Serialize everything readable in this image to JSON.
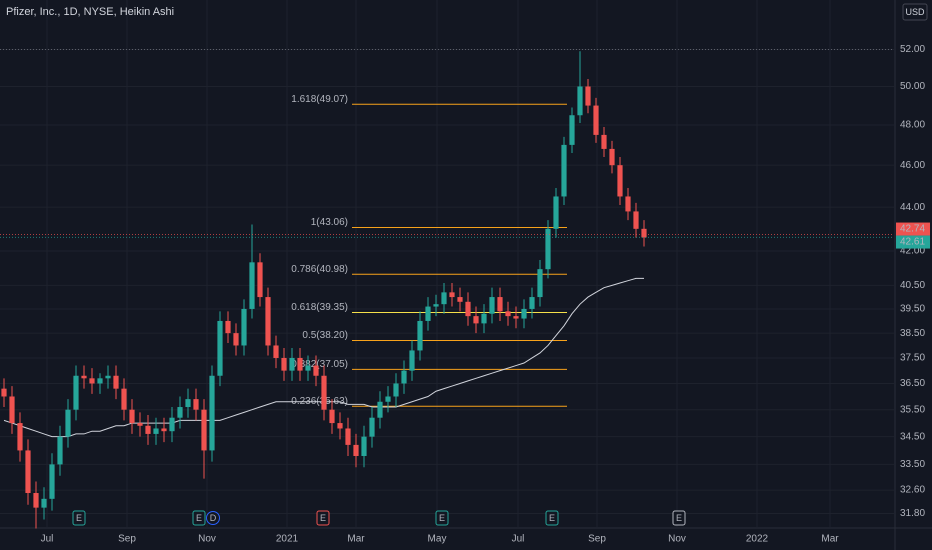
{
  "chart_data": {
    "type": "candlestick",
    "title": "Pfizer, Inc., 1D, NYSE, Heikin Ashi",
    "currency": "USD",
    "log_scale": true,
    "grid": true,
    "up_color": "#26a69a",
    "down_color": "#ef5350",
    "xlim": [
      -0.5,
      110.75
    ],
    "xticks": [
      {
        "value": 5.375,
        "label": "Jul"
      },
      {
        "value": 15.375,
        "label": "Sep"
      },
      {
        "value": 25.375,
        "label": "Nov"
      },
      {
        "value": 35.375,
        "label": "2021"
      },
      {
        "value": 44,
        "label": "Mar"
      },
      {
        "value": 54.125,
        "label": "May"
      },
      {
        "value": 64.25,
        "label": "Jul"
      },
      {
        "value": 74.125,
        "label": "Sep"
      },
      {
        "value": 84.125,
        "label": "Nov"
      },
      {
        "value": 94.125,
        "label": "2022"
      },
      {
        "value": 103.25,
        "label": "Mar"
      }
    ],
    "ylim": [
      31.35,
      54.8
    ],
    "yticks": [
      {
        "value": 31.8,
        "label": "31.80"
      },
      {
        "value": 32.6,
        "label": "32.60"
      },
      {
        "value": 33.5,
        "label": "33.50"
      },
      {
        "value": 34.5,
        "label": "34.50"
      },
      {
        "value": 35.5,
        "label": "35.50"
      },
      {
        "value": 36.5,
        "label": "36.50"
      },
      {
        "value": 37.5,
        "label": "37.50"
      },
      {
        "value": 38.5,
        "label": "38.50"
      },
      {
        "value": 39.5,
        "label": "39.50"
      },
      {
        "value": 40.5,
        "label": "40.50"
      },
      {
        "value": 42,
        "label": "42.00"
      },
      {
        "value": 44,
        "label": "44.00"
      },
      {
        "value": 46,
        "label": "46.00"
      },
      {
        "value": 48,
        "label": "48.00"
      },
      {
        "value": 50,
        "label": "50.00"
      },
      {
        "value": 52,
        "label": "52.00"
      }
    ],
    "open": [
      36.3,
      36.0,
      35.0,
      34.0,
      32.5,
      32.0,
      32.3,
      33.5,
      34.5,
      35.5,
      36.8,
      36.7,
      36.5,
      36.7,
      36.8,
      36.3,
      35.5,
      35.0,
      34.9,
      34.6,
      34.8,
      34.7,
      35.2,
      35.6,
      35.9,
      35.5,
      34.0,
      36.8,
      39.0,
      38.5,
      38.0,
      39.5,
      41.5,
      40.0,
      38.0,
      37.5,
      37.0,
      37.5,
      37.0,
      37.2,
      36.8,
      35.5,
      35.0,
      34.8,
      34.2,
      33.8,
      34.5,
      35.2,
      35.8,
      36.0,
      36.5,
      37.0,
      37.8,
      39.0,
      39.6,
      39.7,
      40.2,
      40.0,
      39.8,
      39.2,
      38.9,
      39.3,
      40.0,
      39.4,
      39.2,
      39.1,
      39.5,
      40.0,
      41.2,
      43.0,
      44.5,
      47.0,
      48.5,
      50.0,
      49.0,
      47.5,
      46.8,
      46.0,
      44.5,
      43.8,
      43.0
    ],
    "high": [
      36.7,
      36.4,
      35.4,
      34.4,
      32.9,
      32.7,
      33.9,
      34.9,
      35.9,
      37.2,
      37.2,
      37.1,
      36.9,
      37.2,
      37.2,
      36.7,
      35.9,
      35.4,
      35.3,
      35.2,
      35.2,
      35.6,
      36.0,
      36.3,
      36.3,
      35.9,
      37.2,
      39.4,
      39.4,
      38.9,
      39.9,
      43.2,
      41.9,
      40.4,
      38.4,
      37.9,
      37.9,
      37.9,
      37.6,
      37.6,
      37.2,
      35.9,
      35.4,
      35.2,
      34.6,
      34.9,
      35.6,
      36.2,
      36.4,
      36.9,
      37.4,
      38.2,
      39.4,
      40.0,
      40.1,
      40.6,
      40.6,
      40.4,
      40.2,
      39.6,
      39.7,
      40.4,
      40.4,
      39.8,
      39.6,
      39.9,
      40.4,
      41.6,
      43.4,
      44.9,
      47.4,
      48.9,
      51.9,
      50.4,
      49.4,
      47.9,
      47.2,
      46.4,
      44.9,
      44.2,
      43.4
    ],
    "low": [
      35.6,
      34.6,
      33.6,
      32.1,
      31.3,
      31.6,
      31.9,
      33.1,
      34.1,
      35.1,
      36.3,
      36.1,
      36.1,
      36.3,
      35.9,
      35.1,
      34.6,
      34.5,
      34.2,
      34.2,
      34.3,
      34.3,
      34.8,
      35.2,
      35.1,
      33.0,
      33.6,
      36.4,
      38.1,
      37.6,
      37.6,
      39.1,
      39.6,
      37.6,
      37.1,
      36.6,
      36.6,
      36.6,
      36.6,
      36.4,
      35.1,
      34.6,
      34.4,
      33.8,
      33.4,
      33.4,
      34.1,
      34.8,
      35.4,
      35.6,
      36.1,
      36.6,
      37.4,
      38.6,
      39.2,
      39.3,
      39.6,
      39.4,
      38.8,
      38.5,
      38.5,
      38.9,
      39.0,
      38.8,
      38.7,
      38.7,
      39.1,
      39.6,
      40.8,
      42.6,
      44.1,
      46.6,
      48.1,
      48.6,
      47.1,
      46.4,
      45.6,
      44.1,
      43.4,
      42.6,
      42.2
    ],
    "close": [
      36.0,
      35.0,
      34.0,
      32.5,
      32.0,
      32.3,
      33.5,
      34.5,
      35.5,
      36.8,
      36.7,
      36.5,
      36.7,
      36.8,
      36.3,
      35.5,
      35.0,
      34.9,
      34.6,
      34.8,
      34.7,
      35.2,
      35.6,
      35.9,
      35.5,
      34.0,
      36.8,
      39.0,
      38.5,
      38.0,
      39.5,
      41.5,
      40.0,
      38.0,
      37.5,
      37.0,
      37.5,
      37.0,
      37.2,
      36.8,
      35.5,
      35.0,
      34.8,
      34.2,
      33.8,
      34.5,
      35.2,
      35.8,
      36.0,
      36.5,
      37.0,
      37.8,
      39.0,
      39.6,
      39.7,
      40.2,
      40.0,
      39.8,
      39.2,
      38.9,
      39.3,
      40.0,
      39.4,
      39.2,
      39.1,
      39.5,
      40.0,
      41.2,
      43.0,
      44.5,
      47.0,
      48.5,
      50.0,
      49.0,
      47.5,
      46.8,
      46.0,
      44.5,
      43.8,
      43.0,
      42.61
    ],
    "moving_average": {
      "color": "#d1d4dc",
      "values": [
        35.1,
        35.0,
        34.9,
        34.8,
        34.7,
        34.6,
        34.5,
        34.5,
        34.5,
        34.6,
        34.6,
        34.7,
        34.7,
        34.8,
        34.9,
        34.9,
        35.0,
        35.0,
        35.0,
        35.0,
        35.0,
        35.0,
        35.1,
        35.1,
        35.1,
        35.1,
        35.1,
        35.1,
        35.2,
        35.3,
        35.4,
        35.5,
        35.6,
        35.7,
        35.8,
        35.8,
        35.8,
        35.8,
        35.8,
        35.8,
        35.8,
        35.8,
        35.8,
        35.7,
        35.7,
        35.7,
        35.6,
        35.6,
        35.6,
        35.6,
        35.7,
        35.8,
        35.9,
        36.0,
        36.2,
        36.3,
        36.4,
        36.5,
        36.6,
        36.7,
        36.8,
        36.9,
        37.0,
        37.1,
        37.2,
        37.3,
        37.5,
        37.7,
        38.0,
        38.4,
        38.8,
        39.3,
        39.7,
        40.0,
        40.2,
        40.4,
        40.5,
        40.6,
        40.7,
        40.8,
        40.8
      ]
    },
    "fib": {
      "x_range": [
        43.5,
        70.375
      ],
      "levels": [
        {
          "label": "1.618(49.07)",
          "value": 49.07,
          "color": "#f7a21b"
        },
        {
          "label": "1(43.06)",
          "value": 43.06,
          "color": "#f7a21b"
        },
        {
          "label": "0.786(40.98)",
          "value": 40.98,
          "color": "#f7a21b"
        },
        {
          "label": "0.618(39.35)",
          "value": 39.35,
          "color": "#f5e04a"
        },
        {
          "label": "0.5(38.20)",
          "value": 38.2,
          "color": "#f7a21b"
        },
        {
          "label": "0.382(37.05)",
          "value": 37.05,
          "color": "#f7a21b"
        },
        {
          "label": "0.236(35.63)",
          "value": 35.63,
          "color": "#f7a21b"
        }
      ]
    },
    "price_labels": [
      {
        "value": 42.74,
        "color": "#ef5350"
      },
      {
        "value": 42.61,
        "color": "#26a69a"
      }
    ],
    "events": [
      {
        "label": "E",
        "x": 9.375,
        "color": "#26a69a"
      },
      {
        "label": "E",
        "x": 24.375,
        "color": "#26a69a"
      },
      {
        "label": "D",
        "x": 26.125,
        "color": "#2962ff"
      },
      {
        "label": "E",
        "x": 39.875,
        "color": "#ef5350"
      },
      {
        "label": "E",
        "x": 54.75,
        "color": "#26a69a"
      },
      {
        "label": "E",
        "x": 68.5,
        "color": "#26a69a"
      },
      {
        "label": "E",
        "x": 84.375,
        "color": "#b2b5be"
      }
    ]
  }
}
